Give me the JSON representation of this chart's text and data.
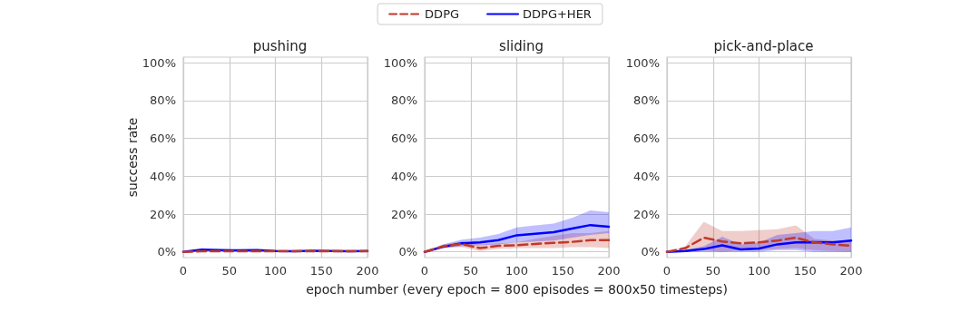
{
  "chart_data": [
    {
      "type": "line",
      "title": "pushing",
      "ylabel": "success rate",
      "legend": false,
      "grid": true,
      "x": [
        0,
        20,
        40,
        60,
        80,
        100,
        120,
        140,
        160,
        180,
        200
      ],
      "xlim": [
        0,
        200
      ],
      "xticks": [
        0,
        50,
        100,
        150,
        200
      ],
      "ylim": [
        -3,
        103
      ],
      "yticks": [
        {
          "value": 0,
          "label": "0%"
        },
        {
          "value": 20,
          "label": "20%"
        },
        {
          "value": 40,
          "label": "40%"
        },
        {
          "value": 60,
          "label": "60%"
        },
        {
          "value": 80,
          "label": "80%"
        },
        {
          "value": 100,
          "label": "100%"
        }
      ],
      "series": [
        {
          "color": "#c0392b",
          "line_style": "dashed",
          "values": [
            0,
            0.3,
            0.3,
            0.3,
            0.3,
            0.3,
            0.3,
            0.3,
            0.3,
            0.3,
            0.3
          ]
        },
        {
          "color": "#0000ff",
          "line_style": "solid",
          "values": [
            0,
            1.2,
            1,
            0.8,
            1,
            0.5,
            0.4,
            0.6,
            0.5,
            0.4,
            0.5
          ]
        }
      ]
    },
    {
      "type": "line",
      "title": "sliding",
      "xlabel": "epoch number (every epoch = 800 episodes = 800x50 timesteps)",
      "legend": "top",
      "grid": true,
      "x": [
        0,
        20,
        40,
        60,
        80,
        100,
        120,
        140,
        160,
        180,
        200
      ],
      "xlim": [
        0,
        200
      ],
      "xticks": [
        0,
        50,
        100,
        150,
        200
      ],
      "ylim": [
        -3,
        103
      ],
      "yticks": [
        {
          "value": 0,
          "label": "0%"
        },
        {
          "value": 20,
          "label": "20%"
        },
        {
          "value": 40,
          "label": "40%"
        },
        {
          "value": 60,
          "label": "60%"
        },
        {
          "value": 80,
          "label": "80%"
        },
        {
          "value": 100,
          "label": "100%"
        }
      ],
      "series": [
        {
          "name": "DDPG",
          "color": "#c0392b",
          "line_style": "dashed",
          "values": [
            0,
            3,
            4.2,
            2,
            3.2,
            3.5,
            4.2,
            4.8,
            5.3,
            6.2,
            6.2
          ],
          "lower": [
            0,
            2,
            2.5,
            0.5,
            1.5,
            2,
            2,
            2,
            2.5,
            2.5,
            2
          ],
          "upper": [
            0,
            4,
            5.5,
            4,
            4.5,
            5,
            7,
            8.5,
            10,
            10,
            11
          ]
        },
        {
          "name": "DDPG+HER",
          "color": "#0000ff",
          "line_style": "solid",
          "values": [
            0,
            2.7,
            4.6,
            5,
            6.2,
            8.8,
            9.6,
            10.4,
            12.3,
            14.2,
            13.3
          ],
          "lower": [
            0,
            2,
            3,
            3.5,
            4,
            5,
            5.5,
            6,
            7.5,
            9,
            10
          ],
          "upper": [
            0,
            4,
            6.5,
            7.5,
            9.5,
            13,
            14,
            15,
            18,
            22,
            21
          ]
        }
      ]
    },
    {
      "type": "line",
      "title": "pick-and-place",
      "legend": false,
      "grid": true,
      "x": [
        0,
        20,
        40,
        60,
        80,
        100,
        120,
        140,
        160,
        180,
        200
      ],
      "xlim": [
        0,
        200
      ],
      "xticks": [
        0,
        50,
        100,
        150,
        200
      ],
      "ylim": [
        -3,
        103
      ],
      "yticks": [
        {
          "value": 0,
          "label": "0%"
        },
        {
          "value": 20,
          "label": "20%"
        },
        {
          "value": 40,
          "label": "40%"
        },
        {
          "value": 60,
          "label": "60%"
        },
        {
          "value": 80,
          "label": "80%"
        },
        {
          "value": 100,
          "label": "100%"
        }
      ],
      "series": [
        {
          "color": "#c0392b",
          "line_style": "dashed",
          "values": [
            0,
            2,
            7.5,
            5.5,
            4.5,
            5,
            6,
            7.5,
            5,
            4,
            3.3
          ],
          "lower": [
            0,
            0.5,
            1,
            0,
            1,
            1,
            1.5,
            2,
            1,
            0.5,
            0
          ],
          "upper": [
            0,
            3,
            16,
            11,
            11,
            11.5,
            12,
            14,
            7,
            6,
            5.5
          ]
        },
        {
          "color": "#0000ff",
          "line_style": "solid",
          "values": [
            0,
            0.5,
            1.5,
            3.5,
            1.3,
            1.8,
            4,
            5,
            5.2,
            5,
            6
          ],
          "lower": [
            0,
            0,
            0,
            0,
            0,
            0,
            1,
            1,
            0,
            0,
            0
          ],
          "upper": [
            0,
            1,
            3,
            8,
            4,
            5,
            9,
            10,
            11,
            11,
            13
          ]
        }
      ]
    }
  ]
}
